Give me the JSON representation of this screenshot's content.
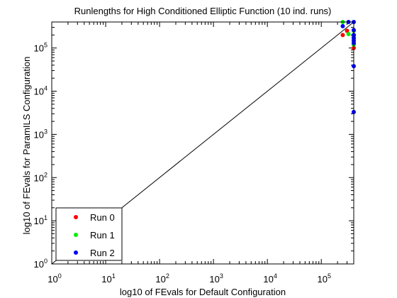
{
  "chart_data": {
    "type": "scatter",
    "title": "Runlengths for High Conditioned Elliptic Function (10 ind. runs)",
    "xlabel": "log10 of FEvals for Default Configuration",
    "ylabel": "log10 of FEvals for ParamILS Configuration",
    "x_scale": "log",
    "y_scale": "log",
    "xlim": [
      1,
      400000
    ],
    "ylim": [
      1,
      400000
    ],
    "x_ticks": [
      {
        "value": 1,
        "base": "10",
        "exp": "0"
      },
      {
        "value": 10,
        "base": "10",
        "exp": "1"
      },
      {
        "value": 100,
        "base": "10",
        "exp": "2"
      },
      {
        "value": 1000,
        "base": "10",
        "exp": "3"
      },
      {
        "value": 10000,
        "base": "10",
        "exp": "4"
      },
      {
        "value": 100000,
        "base": "10",
        "exp": "5"
      }
    ],
    "y_ticks": [
      {
        "value": 1,
        "base": "10",
        "exp": "0"
      },
      {
        "value": 10,
        "base": "10",
        "exp": "1"
      },
      {
        "value": 100,
        "base": "10",
        "exp": "2"
      },
      {
        "value": 1000,
        "base": "10",
        "exp": "3"
      },
      {
        "value": 10000,
        "base": "10",
        "exp": "4"
      },
      {
        "value": 100000,
        "base": "10",
        "exp": "5"
      }
    ],
    "grid": false,
    "legend_position": "bottom-left",
    "reference_lines": [
      {
        "kind": "diagonal",
        "from": [
          1,
          1
        ],
        "to": [
          400000,
          400000
        ]
      },
      {
        "kind": "vertical",
        "x": 400000,
        "from": 1,
        "to": 400000
      },
      {
        "kind": "horizontal",
        "y": 400000,
        "from": 1,
        "to": 400000
      }
    ],
    "series": [
      {
        "name": "Run 0",
        "color": "#ff0000",
        "points": [
          [
            250000,
            200000
          ],
          [
            400000,
            250000
          ],
          [
            400000,
            200000
          ],
          [
            400000,
            100000
          ],
          [
            300000,
            250000
          ],
          [
            400000,
            200000
          ],
          [
            400000,
            120000
          ]
        ]
      },
      {
        "name": "Run 1",
        "color": "#00ee00",
        "points": [
          [
            250000,
            400000
          ],
          [
            320000,
            210000
          ],
          [
            400000,
            250000
          ],
          [
            400000,
            140000
          ],
          [
            400000,
            180000
          ],
          [
            400000,
            120000
          ]
        ]
      },
      {
        "name": "Run 2",
        "color": "#0000ff",
        "points": [
          [
            250000,
            320000
          ],
          [
            320000,
            400000
          ],
          [
            400000,
            400000
          ],
          [
            400000,
            260000
          ],
          [
            400000,
            200000
          ],
          [
            400000,
            170000
          ],
          [
            400000,
            150000
          ],
          [
            400000,
            130000
          ],
          [
            400000,
            38000
          ],
          [
            400000,
            3300
          ]
        ]
      }
    ]
  }
}
